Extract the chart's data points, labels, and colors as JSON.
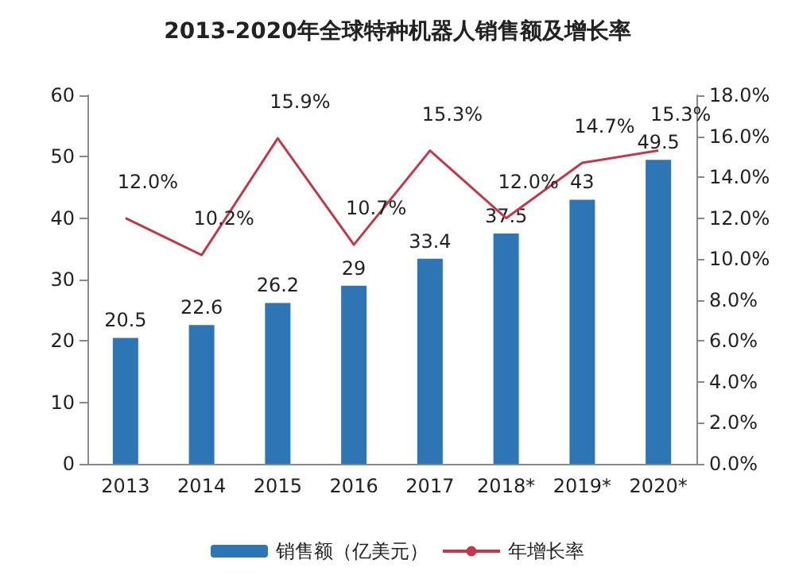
{
  "chart_data": {
    "type": "bar",
    "title": "2013-2020年全球特种机器人销售额及增长率",
    "categories": [
      "2013",
      "2014",
      "2015",
      "2016",
      "2017",
      "2018*",
      "2019*",
      "2020*"
    ],
    "series": [
      {
        "name": "销售额（亿美元）",
        "color": "#2e75b6",
        "values": [
          20.5,
          22.6,
          26.2,
          29,
          33.4,
          37.5,
          43,
          49.5
        ],
        "value_labels": [
          "20.5",
          "22.6",
          "26.2",
          "29",
          "33.4",
          "37.5",
          "43",
          "49.5"
        ]
      },
      {
        "name": "年增长率",
        "type": "line",
        "axis": "y2",
        "color": "#c0394b",
        "values": [
          12.0,
          10.2,
          15.9,
          10.7,
          15.3,
          12.0,
          14.7,
          15.3
        ],
        "value_labels": [
          "12.0%",
          "10.2%",
          "15.9%",
          "10.7%",
          "15.3%",
          "12.0%",
          "14.7%",
          "15.3%"
        ]
      }
    ],
    "ylim": [
      0,
      60
    ],
    "yticks": [
      0,
      10,
      20,
      30,
      40,
      50,
      60
    ],
    "y2lim": [
      0,
      18
    ],
    "y2ticks": [
      {
        "value": 0,
        "label": "0.0%"
      },
      {
        "value": 2,
        "label": "2.0%"
      },
      {
        "value": 4,
        "label": "4.0%"
      },
      {
        "value": 6,
        "label": "6.0%"
      },
      {
        "value": 8,
        "label": "8.0%"
      },
      {
        "value": 10,
        "label": "10.0%"
      },
      {
        "value": 12,
        "label": "12.0%"
      },
      {
        "value": 14,
        "label": "14.0%"
      },
      {
        "value": 16,
        "label": "16.0%"
      },
      {
        "value": 18,
        "label": "18.0%"
      }
    ],
    "legend": "bottom",
    "grid": false,
    "marker": "none"
  }
}
